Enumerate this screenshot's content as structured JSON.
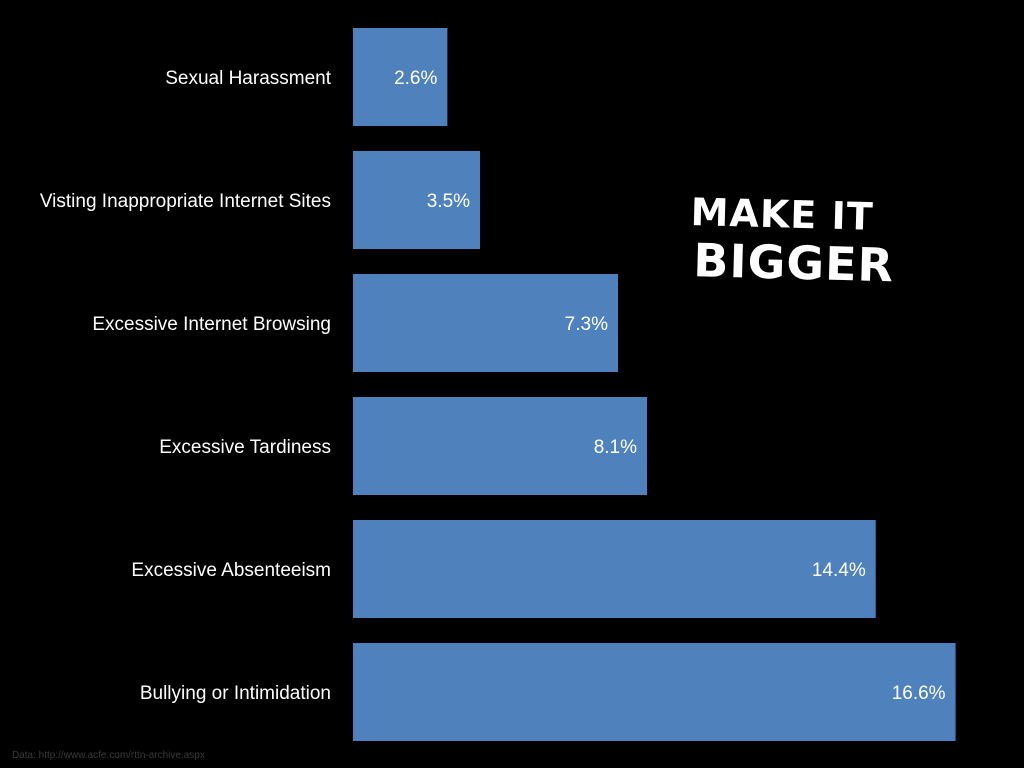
{
  "chart_data": {
    "type": "bar",
    "orientation": "horizontal",
    "categories": [
      "Sexual Harassment",
      "Visting Inappropriate Internet Sites",
      "Excessive Internet Browsing",
      "Excessive Tardiness",
      "Excessive Absenteeism",
      "Bullying or Intimidation"
    ],
    "values": [
      2.6,
      3.5,
      7.3,
      8.1,
      14.4,
      16.6
    ],
    "value_labels": [
      "2.6%",
      "3.5%",
      "7.3%",
      "8.1%",
      "14.4%",
      "16.6%"
    ],
    "bar_color": "#4f81bd",
    "background_color": "#000000",
    "grid": false,
    "legend": "none",
    "title": "",
    "xlabel": "",
    "ylabel": ""
  },
  "callout": {
    "line1": "MAKE IT",
    "line2": "BIGGER"
  },
  "source_note": "Data: http://www.acfe.com/rttn-archive.aspx"
}
